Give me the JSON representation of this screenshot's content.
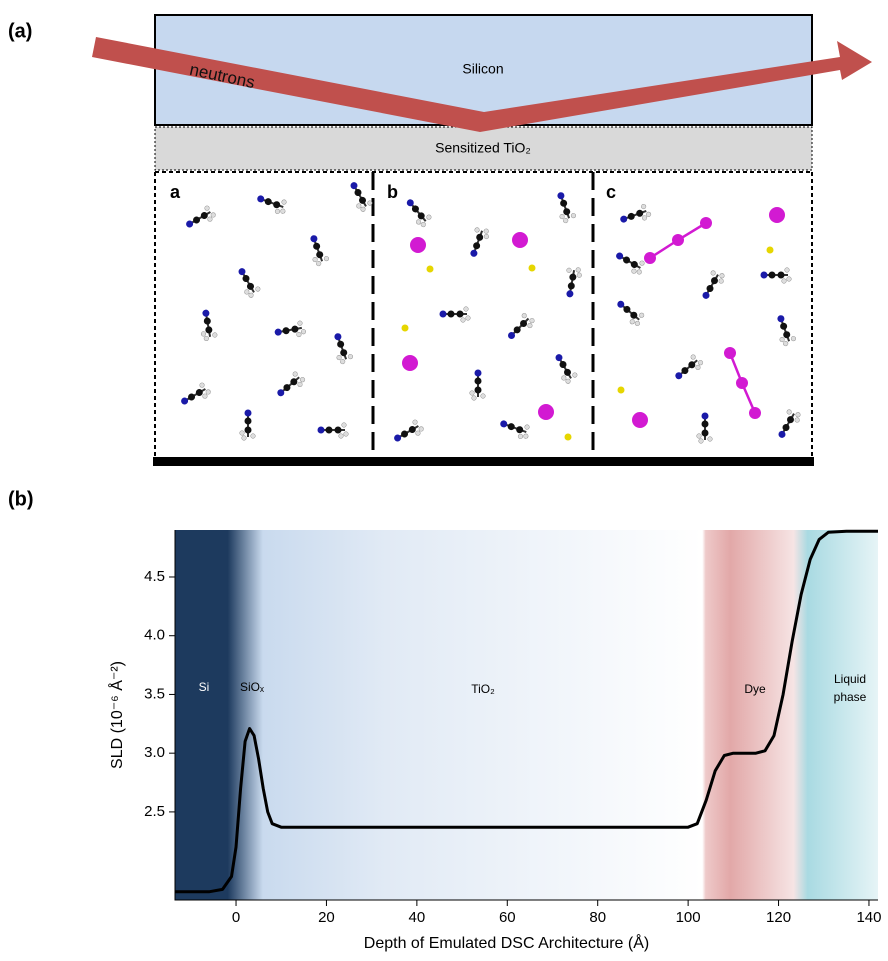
{
  "panel_labels": [
    "(a)",
    "(b)"
  ],
  "diagram": {
    "beam": "neutrons",
    "substrate": "Silicon",
    "layer": "Sensitized TiO₂",
    "panels": [
      "a",
      "b",
      "c"
    ]
  },
  "chart_data": {
    "type": "line",
    "x_label": "Depth of Emulated DSC Architecture (Å)",
    "y_label": "SLD (10⁻⁶ Å⁻²)",
    "annotations": [
      "Si",
      "SiOₓ",
      "TiO₂",
      "Dye",
      "Liquid phase"
    ],
    "x": [
      -13.5,
      -6,
      -3,
      -1,
      0,
      1,
      2,
      3,
      4,
      5,
      6,
      7,
      8,
      10,
      20,
      40,
      60,
      80,
      100,
      102,
      104,
      106,
      108,
      110,
      115,
      117,
      119,
      121,
      123,
      125,
      127,
      129,
      131,
      135,
      142
    ],
    "series": [
      {
        "color": "#000000",
        "values": [
          1.82,
          1.82,
          1.84,
          1.95,
          2.2,
          2.7,
          3.1,
          3.21,
          3.15,
          2.95,
          2.7,
          2.5,
          2.4,
          2.37,
          2.37,
          2.37,
          2.37,
          2.37,
          2.37,
          2.4,
          2.6,
          2.85,
          2.98,
          3.0,
          3.0,
          3.02,
          3.15,
          3.5,
          3.95,
          4.35,
          4.65,
          4.82,
          4.88,
          4.89,
          4.89
        ]
      }
    ],
    "xlim": [
      -13.5,
      142
    ],
    "xticks": [
      0,
      20,
      40,
      60,
      80,
      100,
      120,
      140
    ],
    "ylim": [
      1.75,
      4.9
    ],
    "yticks": [
      2.5,
      {
        "value": 3,
        "label": "3.0"
      },
      3.5,
      {
        "value": 4,
        "label": "4.0"
      },
      4.5
    ]
  }
}
